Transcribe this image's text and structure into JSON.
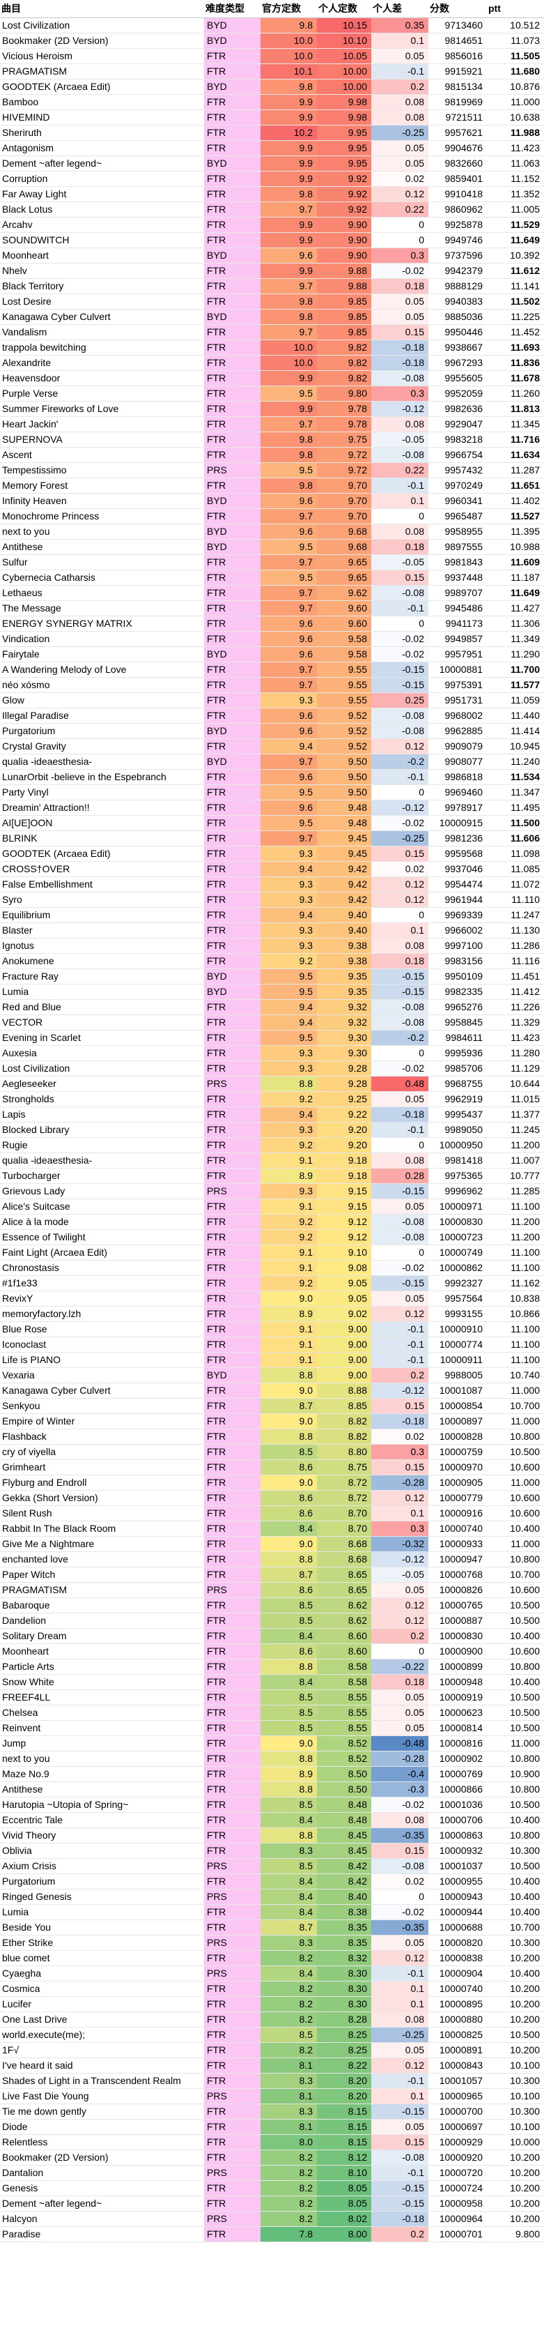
{
  "headers": {
    "song": "曲目",
    "type": "难度类型",
    "official": "官方定数",
    "personal": "个人定数",
    "diff": "个人差",
    "score": "分数",
    "ptt": "ptt"
  },
  "colors": {
    "byd_ftr_prs_bg": "#fbc6f4",
    "high": "#f8696b",
    "mid": "#ffeb84",
    "low": "#63be7b",
    "diff_pos": "#f8696b",
    "diff_neg": "#5a8ac6"
  },
  "rows": [
    [
      "Lost Civilization",
      "BYD",
      "9.8",
      "10.15",
      "0.35",
      "9713460",
      "10.512"
    ],
    [
      "Bookmaker (2D Version)",
      "BYD",
      "10.0",
      "10.10",
      "0.1",
      "9814651",
      "11.073"
    ],
    [
      "Vicious Heroism",
      "FTR",
      "10.0",
      "10.05",
      "0.05",
      "9856016",
      "11.505"
    ],
    [
      "PRAGMATISM",
      "FTR",
      "10.1",
      "10.00",
      "-0.1",
      "9915921",
      "11.680"
    ],
    [
      "GOODTEK (Arcaea Edit)",
      "BYD",
      "9.8",
      "10.00",
      "0.2",
      "9815134",
      "10.876"
    ],
    [
      "Bamboo",
      "FTR",
      "9.9",
      "9.98",
      "0.08",
      "9819969",
      "11.000"
    ],
    [
      "HIVEMIND",
      "FTR",
      "9.9",
      "9.98",
      "0.08",
      "9721511",
      "10.638"
    ],
    [
      "Sheriruth",
      "FTR",
      "10.2",
      "9.95",
      "-0.25",
      "9957621",
      "11.988"
    ],
    [
      "Antagonism",
      "FTR",
      "9.9",
      "9.95",
      "0.05",
      "9904676",
      "11.423"
    ],
    [
      "Dement ~after legend~",
      "BYD",
      "9.9",
      "9.95",
      "0.05",
      "9832660",
      "11.063"
    ],
    [
      "Corruption",
      "FTR",
      "9.9",
      "9.92",
      "0.02",
      "9859401",
      "11.152"
    ],
    [
      "Far Away Light",
      "FTR",
      "9.8",
      "9.92",
      "0.12",
      "9910418",
      "11.352"
    ],
    [
      "Black Lotus",
      "FTR",
      "9.7",
      "9.92",
      "0.22",
      "9860962",
      "11.005"
    ],
    [
      "Arcahv",
      "FTR",
      "9.9",
      "9.90",
      "0",
      "9925878",
      "11.529"
    ],
    [
      "SOUNDWITCH",
      "FTR",
      "9.9",
      "9.90",
      "0",
      "9949746",
      "11.649"
    ],
    [
      "Moonheart",
      "BYD",
      "9.6",
      "9.90",
      "0.3",
      "9737596",
      "10.392"
    ],
    [
      "Nhelv",
      "FTR",
      "9.9",
      "9.88",
      "-0.02",
      "9942379",
      "11.612"
    ],
    [
      "Black Territory",
      "FTR",
      "9.7",
      "9.88",
      "0.18",
      "9888129",
      "11.141"
    ],
    [
      "Lost Desire",
      "FTR",
      "9.8",
      "9.85",
      "0.05",
      "9940383",
      "11.502"
    ],
    [
      "Kanagawa Cyber Culvert",
      "BYD",
      "9.8",
      "9.85",
      "0.05",
      "9885036",
      "11.225"
    ],
    [
      "Vandalism",
      "FTR",
      "9.7",
      "9.85",
      "0.15",
      "9950446",
      "11.452"
    ],
    [
      "trappola bewitching",
      "FTR",
      "10.0",
      "9.82",
      "-0.18",
      "9938667",
      "11.693"
    ],
    [
      "Alexandrite",
      "FTR",
      "10.0",
      "9.82",
      "-0.18",
      "9967293",
      "11.836"
    ],
    [
      "Heavensdoor",
      "FTR",
      "9.9",
      "9.82",
      "-0.08",
      "9955605",
      "11.678"
    ],
    [
      "Purple Verse",
      "FTR",
      "9.5",
      "9.80",
      "0.3",
      "9952059",
      "11.260"
    ],
    [
      "Summer Fireworks of Love",
      "FTR",
      "9.9",
      "9.78",
      "-0.12",
      "9982636",
      "11.813"
    ],
    [
      "Heart Jackin'",
      "FTR",
      "9.7",
      "9.78",
      "0.08",
      "9929047",
      "11.345"
    ],
    [
      "SUPERNOVA",
      "FTR",
      "9.8",
      "9.75",
      "-0.05",
      "9983218",
      "11.716"
    ],
    [
      "Ascent",
      "FTR",
      "9.8",
      "9.72",
      "-0.08",
      "9966754",
      "11.634"
    ],
    [
      "Tempestissimo",
      "PRS",
      "9.5",
      "9.72",
      "0.22",
      "9957432",
      "11.287"
    ],
    [
      "Memory Forest",
      "FTR",
      "9.8",
      "9.70",
      "-0.1",
      "9970249",
      "11.651"
    ],
    [
      "Infinity Heaven",
      "BYD",
      "9.6",
      "9.70",
      "0.1",
      "9960341",
      "11.402"
    ],
    [
      "Monochrome Princess",
      "FTR",
      "9.7",
      "9.70",
      "0",
      "9965487",
      "11.527"
    ],
    [
      "next to you",
      "BYD",
      "9.6",
      "9.68",
      "0.08",
      "9958955",
      "11.395"
    ],
    [
      "Antithese",
      "BYD",
      "9.5",
      "9.68",
      "0.18",
      "9897555",
      "10.988"
    ],
    [
      "Sulfur",
      "FTR",
      "9.7",
      "9.65",
      "-0.05",
      "9981843",
      "11.609"
    ],
    [
      "Cybernecia Catharsis",
      "FTR",
      "9.5",
      "9.65",
      "0.15",
      "9937448",
      "11.187"
    ],
    [
      "Lethaeus",
      "FTR",
      "9.7",
      "9.62",
      "-0.08",
      "9989707",
      "11.649"
    ],
    [
      "The Message",
      "FTR",
      "9.7",
      "9.60",
      "-0.1",
      "9945486",
      "11.427"
    ],
    [
      "ENERGY SYNERGY MATRIX",
      "FTR",
      "9.6",
      "9.60",
      "0",
      "9941173",
      "11.306"
    ],
    [
      "Vindication",
      "FTR",
      "9.6",
      "9.58",
      "-0.02",
      "9949857",
      "11.349"
    ],
    [
      "Fairytale",
      "BYD",
      "9.6",
      "9.58",
      "-0.02",
      "9957951",
      "11.290"
    ],
    [
      "A Wandering Melody of Love",
      "FTR",
      "9.7",
      "9.55",
      "-0.15",
      "10000881",
      "11.700"
    ],
    [
      "néo xósmo",
      "FTR",
      "9.7",
      "9.55",
      "-0.15",
      "9975391",
      "11.577"
    ],
    [
      "Glow",
      "FTR",
      "9.3",
      "9.55",
      "0.25",
      "9951731",
      "11.059"
    ],
    [
      "Illegal Paradise",
      "FTR",
      "9.6",
      "9.52",
      "-0.08",
      "9968002",
      "11.440"
    ],
    [
      "Purgatorium",
      "BYD",
      "9.6",
      "9.52",
      "-0.08",
      "9962885",
      "11.414"
    ],
    [
      "Crystal Gravity",
      "FTR",
      "9.4",
      "9.52",
      "0.12",
      "9909079",
      "10.945"
    ],
    [
      "qualia -ideaesthesia-",
      "BYD",
      "9.7",
      "9.50",
      "-0.2",
      "9908077",
      "11.240"
    ],
    [
      "LunarOrbit -believe in the Espebranch",
      "FTR",
      "9.6",
      "9.50",
      "-0.1",
      "9986818",
      "11.534"
    ],
    [
      "Party Vinyl",
      "FTR",
      "9.5",
      "9.50",
      "0",
      "9969460",
      "11.347"
    ],
    [
      "Dreamin' Attraction!!",
      "FTR",
      "9.6",
      "9.48",
      "-0.12",
      "9978917",
      "11.495"
    ],
    [
      "AI[UE]OON",
      "FTR",
      "9.5",
      "9.48",
      "-0.02",
      "10000915",
      "11.500"
    ],
    [
      "BLRINK",
      "FTR",
      "9.7",
      "9.45",
      "-0.25",
      "9981236",
      "11.606"
    ],
    [
      "GOODTEK (Arcaea Edit)",
      "FTR",
      "9.3",
      "9.45",
      "0.15",
      "9959568",
      "11.098"
    ],
    [
      "CROSS†OVER",
      "FTR",
      "9.4",
      "9.42",
      "0.02",
      "9937046",
      "11.085"
    ],
    [
      "False Embellishment",
      "FTR",
      "9.3",
      "9.42",
      "0.12",
      "9954474",
      "11.072"
    ],
    [
      "Syro",
      "FTR",
      "9.3",
      "9.42",
      "0.12",
      "9961944",
      "11.110"
    ],
    [
      "Equilibrium",
      "FTR",
      "9.4",
      "9.40",
      "0",
      "9969339",
      "11.247"
    ],
    [
      "Blaster",
      "FTR",
      "9.3",
      "9.40",
      "0.1",
      "9966002",
      "11.130"
    ],
    [
      "Ignotus",
      "FTR",
      "9.3",
      "9.38",
      "0.08",
      "9997100",
      "11.286"
    ],
    [
      "Anokumene",
      "FTR",
      "9.2",
      "9.38",
      "0.18",
      "9983156",
      "11.116"
    ],
    [
      "Fracture Ray",
      "BYD",
      "9.5",
      "9.35",
      "-0.15",
      "9950109",
      "11.451"
    ],
    [
      "Lumia",
      "BYD",
      "9.5",
      "9.35",
      "-0.15",
      "9982335",
      "11.412"
    ],
    [
      "Red and Blue",
      "FTR",
      "9.4",
      "9.32",
      "-0.08",
      "9965276",
      "11.226"
    ],
    [
      "VECTOR",
      "FTR",
      "9.4",
      "9.32",
      "-0.08",
      "9958845",
      "11.329"
    ],
    [
      "Evening in Scarlet",
      "FTR",
      "9.5",
      "9.30",
      "-0.2",
      "9984611",
      "11.423"
    ],
    [
      "Auxesia",
      "FTR",
      "9.3",
      "9.30",
      "0",
      "9995936",
      "11.280"
    ],
    [
      "Lost Civilization",
      "FTR",
      "9.3",
      "9.28",
      "-0.02",
      "9985706",
      "11.129"
    ],
    [
      "Aegleseeker",
      "PRS",
      "8.8",
      "9.28",
      "0.48",
      "9968755",
      "10.644"
    ],
    [
      "Strongholds",
      "FTR",
      "9.2",
      "9.25",
      "0.05",
      "9962919",
      "11.015"
    ],
    [
      "Lapis",
      "FTR",
      "9.4",
      "9.22",
      "-0.18",
      "9995437",
      "11.377"
    ],
    [
      "Blocked Library",
      "FTR",
      "9.3",
      "9.20",
      "-0.1",
      "9989050",
      "11.245"
    ],
    [
      "Rugie",
      "FTR",
      "9.2",
      "9.20",
      "0",
      "10000950",
      "11.200"
    ],
    [
      "qualia -ideaesthesia-",
      "FTR",
      "9.1",
      "9.18",
      "0.08",
      "9981418",
      "11.007"
    ],
    [
      "Turbocharger",
      "FTR",
      "8.9",
      "9.18",
      "0.28",
      "9975365",
      "10.777"
    ],
    [
      "Grievous Lady",
      "PRS",
      "9.3",
      "9.15",
      "-0.15",
      "9996962",
      "11.285"
    ],
    [
      "Alice's Suitcase",
      "FTR",
      "9.1",
      "9.15",
      "0.05",
      "10000971",
      "11.100"
    ],
    [
      "Alice à la mode",
      "FTR",
      "9.2",
      "9.12",
      "-0.08",
      "10000830",
      "11.200"
    ],
    [
      "Essence of Twilight",
      "FTR",
      "9.2",
      "9.12",
      "-0.08",
      "10000723",
      "11.200"
    ],
    [
      "Faint Light (Arcaea Edit)",
      "FTR",
      "9.1",
      "9.10",
      "0",
      "10000749",
      "11.100"
    ],
    [
      "Chronostasis",
      "FTR",
      "9.1",
      "9.08",
      "-0.02",
      "10000862",
      "11.100"
    ],
    [
      "#1f1e33",
      "FTR",
      "9.2",
      "9.05",
      "-0.15",
      "9992327",
      "11.162"
    ],
    [
      "RevixY",
      "FTR",
      "9.0",
      "9.05",
      "0.05",
      "9957564",
      "10.838"
    ],
    [
      "memoryfactory.lzh",
      "FTR",
      "8.9",
      "9.02",
      "0.12",
      "9993155",
      "10.866"
    ],
    [
      "Blue Rose",
      "FTR",
      "9.1",
      "9.00",
      "-0.1",
      "10000910",
      "11.100"
    ],
    [
      "Iconoclast",
      "FTR",
      "9.1",
      "9.00",
      "-0.1",
      "10000774",
      "11.100"
    ],
    [
      "Life is PIANO",
      "FTR",
      "9.1",
      "9.00",
      "-0.1",
      "10000911",
      "11.100"
    ],
    [
      "Vexaria",
      "BYD",
      "8.8",
      "9.00",
      "0.2",
      "9988005",
      "10.740"
    ],
    [
      "Kanagawa Cyber Culvert",
      "FTR",
      "9.0",
      "8.88",
      "-0.12",
      "10001087",
      "11.000"
    ],
    [
      "Senkyou",
      "FTR",
      "8.7",
      "8.85",
      "0.15",
      "10000854",
      "10.700"
    ],
    [
      "Empire of Winter",
      "FTR",
      "9.0",
      "8.82",
      "-0.18",
      "10000897",
      "11.000"
    ],
    [
      "Flashback",
      "FTR",
      "8.8",
      "8.82",
      "0.02",
      "10000828",
      "10.800"
    ],
    [
      "cry of viyella",
      "FTR",
      "8.5",
      "8.80",
      "0.3",
      "10000759",
      "10.500"
    ],
    [
      "Grimheart",
      "FTR",
      "8.6",
      "8.75",
      "0.15",
      "10000970",
      "10.600"
    ],
    [
      "Flyburg and Endroll",
      "FTR",
      "9.0",
      "8.72",
      "-0.28",
      "10000905",
      "11.000"
    ],
    [
      "Gekka (Short Version)",
      "FTR",
      "8.6",
      "8.72",
      "0.12",
      "10000779",
      "10.600"
    ],
    [
      "Silent Rush",
      "FTR",
      "8.6",
      "8.70",
      "0.1",
      "10000916",
      "10.600"
    ],
    [
      "Rabbit In The Black Room",
      "FTR",
      "8.4",
      "8.70",
      "0.3",
      "10000740",
      "10.400"
    ],
    [
      "Give Me a Nightmare",
      "FTR",
      "9.0",
      "8.68",
      "-0.32",
      "10000933",
      "11.000"
    ],
    [
      "enchanted love",
      "FTR",
      "8.8",
      "8.68",
      "-0.12",
      "10000947",
      "10.800"
    ],
    [
      "Paper Witch",
      "FTR",
      "8.7",
      "8.65",
      "-0.05",
      "10000768",
      "10.700"
    ],
    [
      "PRAGMATISM",
      "PRS",
      "8.6",
      "8.65",
      "0.05",
      "10000826",
      "10.600"
    ],
    [
      "Babaroque",
      "FTR",
      "8.5",
      "8.62",
      "0.12",
      "10000765",
      "10.500"
    ],
    [
      "Dandelion",
      "FTR",
      "8.5",
      "8.62",
      "0.12",
      "10000887",
      "10.500"
    ],
    [
      "Solitary Dream",
      "FTR",
      "8.4",
      "8.60",
      "0.2",
      "10000830",
      "10.400"
    ],
    [
      "Moonheart",
      "FTR",
      "8.6",
      "8.60",
      "0",
      "10000900",
      "10.600"
    ],
    [
      "Particle Arts",
      "FTR",
      "8.8",
      "8.58",
      "-0.22",
      "10000899",
      "10.800"
    ],
    [
      "Snow White",
      "FTR",
      "8.4",
      "8.58",
      "0.18",
      "10000948",
      "10.400"
    ],
    [
      "FREEF4LL",
      "FTR",
      "8.5",
      "8.55",
      "0.05",
      "10000919",
      "10.500"
    ],
    [
      "Chelsea",
      "FTR",
      "8.5",
      "8.55",
      "0.05",
      "10000623",
      "10.500"
    ],
    [
      "Reinvent",
      "FTR",
      "8.5",
      "8.55",
      "0.05",
      "10000814",
      "10.500"
    ],
    [
      "Jump",
      "FTR",
      "9.0",
      "8.52",
      "-0.48",
      "10000816",
      "11.000"
    ],
    [
      "next to you",
      "FTR",
      "8.8",
      "8.52",
      "-0.28",
      "10000902",
      "10.800"
    ],
    [
      "Maze No.9",
      "FTR",
      "8.9",
      "8.50",
      "-0.4",
      "10000769",
      "10.900"
    ],
    [
      "Antithese",
      "FTR",
      "8.8",
      "8.50",
      "-0.3",
      "10000866",
      "10.800"
    ],
    [
      "Harutopia ~Utopia of Spring~",
      "FTR",
      "8.5",
      "8.48",
      "-0.02",
      "10001036",
      "10.500"
    ],
    [
      "Eccentric Tale",
      "FTR",
      "8.4",
      "8.48",
      "0.08",
      "10000706",
      "10.400"
    ],
    [
      "Vivid Theory",
      "FTR",
      "8.8",
      "8.45",
      "-0.35",
      "10000863",
      "10.800"
    ],
    [
      "Oblivia",
      "FTR",
      "8.3",
      "8.45",
      "0.15",
      "10000932",
      "10.300"
    ],
    [
      "Axium Crisis",
      "PRS",
      "8.5",
      "8.42",
      "-0.08",
      "10001037",
      "10.500"
    ],
    [
      "Purgatorium",
      "FTR",
      "8.4",
      "8.42",
      "0.02",
      "10000955",
      "10.400"
    ],
    [
      "Ringed Genesis",
      "PRS",
      "8.4",
      "8.40",
      "0",
      "10000943",
      "10.400"
    ],
    [
      "Lumia",
      "FTR",
      "8.4",
      "8.38",
      "-0.02",
      "10000944",
      "10.400"
    ],
    [
      "Beside You",
      "FTR",
      "8.7",
      "8.35",
      "-0.35",
      "10000688",
      "10.700"
    ],
    [
      "Ether Strike",
      "PRS",
      "8.3",
      "8.35",
      "0.05",
      "10000820",
      "10.300"
    ],
    [
      "blue comet",
      "FTR",
      "8.2",
      "8.32",
      "0.12",
      "10000838",
      "10.200"
    ],
    [
      "Cyaegha",
      "PRS",
      "8.4",
      "8.30",
      "-0.1",
      "10000904",
      "10.400"
    ],
    [
      "Cosmica",
      "FTR",
      "8.2",
      "8.30",
      "0.1",
      "10000740",
      "10.200"
    ],
    [
      "Lucifer",
      "FTR",
      "8.2",
      "8.30",
      "0.1",
      "10000895",
      "10.200"
    ],
    [
      "One Last Drive",
      "FTR",
      "8.2",
      "8.28",
      "0.08",
      "10000880",
      "10.200"
    ],
    [
      "world.execute(me);",
      "FTR",
      "8.5",
      "8.25",
      "-0.25",
      "10000825",
      "10.500"
    ],
    [
      "1F√",
      "FTR",
      "8.2",
      "8.25",
      "0.05",
      "10000891",
      "10.200"
    ],
    [
      "I've heard it said",
      "FTR",
      "8.1",
      "8.22",
      "0.12",
      "10000843",
      "10.100"
    ],
    [
      "Shades of Light in a Transcendent Realm",
      "FTR",
      "8.3",
      "8.20",
      "-0.1",
      "10001057",
      "10.300"
    ],
    [
      "Live Fast Die Young",
      "PRS",
      "8.1",
      "8.20",
      "0.1",
      "10000965",
      "10.100"
    ],
    [
      "Tie me down gently",
      "FTR",
      "8.3",
      "8.15",
      "-0.15",
      "10000700",
      "10.300"
    ],
    [
      "Diode",
      "FTR",
      "8.1",
      "8.15",
      "0.05",
      "10000697",
      "10.100"
    ],
    [
      "Relentless",
      "FTR",
      "8.0",
      "8.15",
      "0.15",
      "10000929",
      "10.000"
    ],
    [
      "Bookmaker (2D Version)",
      "FTR",
      "8.2",
      "8.12",
      "-0.08",
      "10000920",
      "10.200"
    ],
    [
      "Dantalion",
      "PRS",
      "8.2",
      "8.10",
      "-0.1",
      "10000720",
      "10.200"
    ],
    [
      "Genesis",
      "FTR",
      "8.2",
      "8.05",
      "-0.15",
      "10000724",
      "10.200"
    ],
    [
      "Dement ~after legend~",
      "FTR",
      "8.2",
      "8.05",
      "-0.15",
      "10000958",
      "10.200"
    ],
    [
      "Halcyon",
      "PRS",
      "8.2",
      "8.02",
      "-0.18",
      "10000964",
      "10.200"
    ],
    [
      "Paradise",
      "FTR",
      "7.8",
      "8.00",
      "0.2",
      "10000701",
      "9.800"
    ]
  ],
  "bold_ptt": [
    "11.505",
    "11.680",
    "11.988",
    "11.529",
    "11.649",
    "11.612",
    "11.502",
    "11.693",
    "11.836",
    "11.678",
    "11.813",
    "11.716",
    "11.634",
    "11.651",
    "11.527",
    "11.609",
    "11.700",
    "11.577",
    "11.534",
    "11.500",
    "11.606"
  ]
}
